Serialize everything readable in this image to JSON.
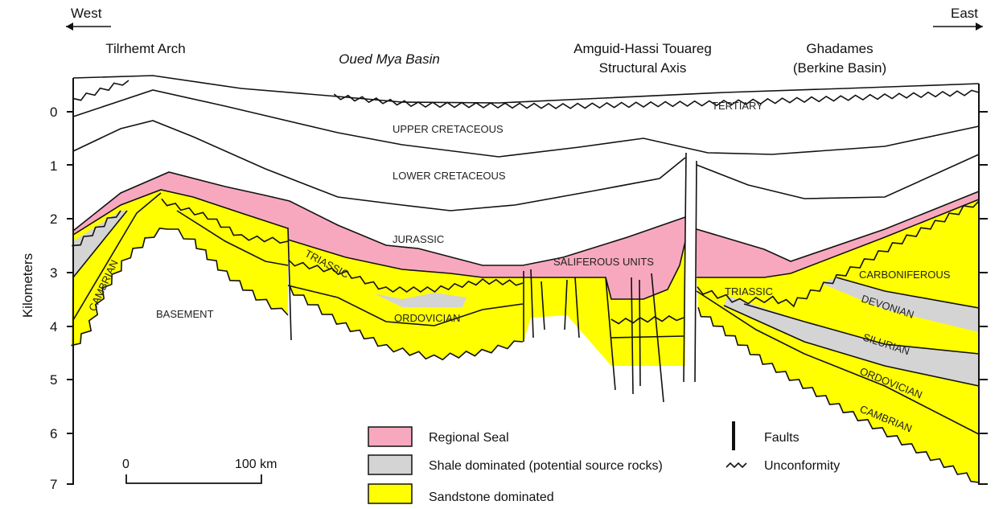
{
  "header": {
    "west": "West",
    "east": "East",
    "regions": [
      "Tilrhemt Arch",
      "Oued Mya Basin",
      "Amguid-Hassi Touareg",
      "Structural Axis",
      "Ghadames",
      "(Berkine Basin)"
    ]
  },
  "axis": {
    "label": "Kilometers",
    "ticks": [
      "0",
      "1",
      "2",
      "3",
      "4",
      "5",
      "6",
      "7"
    ]
  },
  "units": {
    "tertiary": "TERTIARY",
    "upper_cretaceous": "UPPER CRETACEOUS",
    "lower_cretaceous": "LOWER CRETACEOUS",
    "jurassic": "JURASSIC",
    "saliferous": "SALIFEROUS UNITS",
    "triassic_w": "TRIASSIC",
    "ordovician_w": "ORDOVICIAN",
    "cambrian_w": "CAMBRIAN",
    "basement": "BASEMENT",
    "triassic_e": "TRIASSIC",
    "carboniferous": "CARBONIFEROUS",
    "devonian": "DEVONIAN",
    "silurian": "SILURIAN",
    "ordovician_e": "ORDOVICIAN",
    "cambrian_e": "CAMBRIAN"
  },
  "legend": {
    "regional_seal": "Regional Seal",
    "shale": "Shale dominated (potential source rocks)",
    "sandstone": "Sandstone dominated",
    "faults": "Faults",
    "unconformity": "Unconformity"
  },
  "scale_bar": {
    "start": "0",
    "end": "100 km"
  },
  "colors": {
    "seal": "#f7a8bf",
    "shale": "#d4d4d4",
    "sandstone": "#ffff00"
  }
}
